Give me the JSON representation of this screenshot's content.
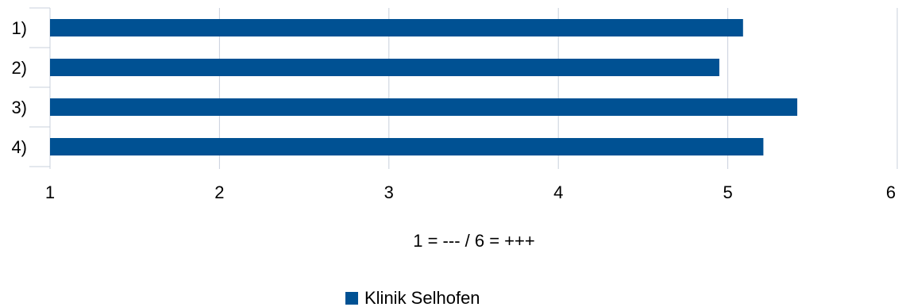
{
  "chart_data": {
    "type": "bar",
    "orientation": "horizontal",
    "categories": [
      "1)",
      "2)",
      "3)",
      "4)"
    ],
    "series": [
      {
        "name": "Klinik Selhofen",
        "values": [
          5.09,
          4.95,
          5.41,
          5.21
        ]
      }
    ],
    "xlabel": "1 = --- / 6 = +++",
    "xlim": [
      1,
      6
    ],
    "xticks": [
      "1",
      "2",
      "3",
      "4",
      "5",
      "6"
    ],
    "grid": "vertical",
    "legend": "bottom-center",
    "colors": {
      "bar": "#005193",
      "grid": "#c8d0dc",
      "axis": "#c8d0dc"
    }
  }
}
